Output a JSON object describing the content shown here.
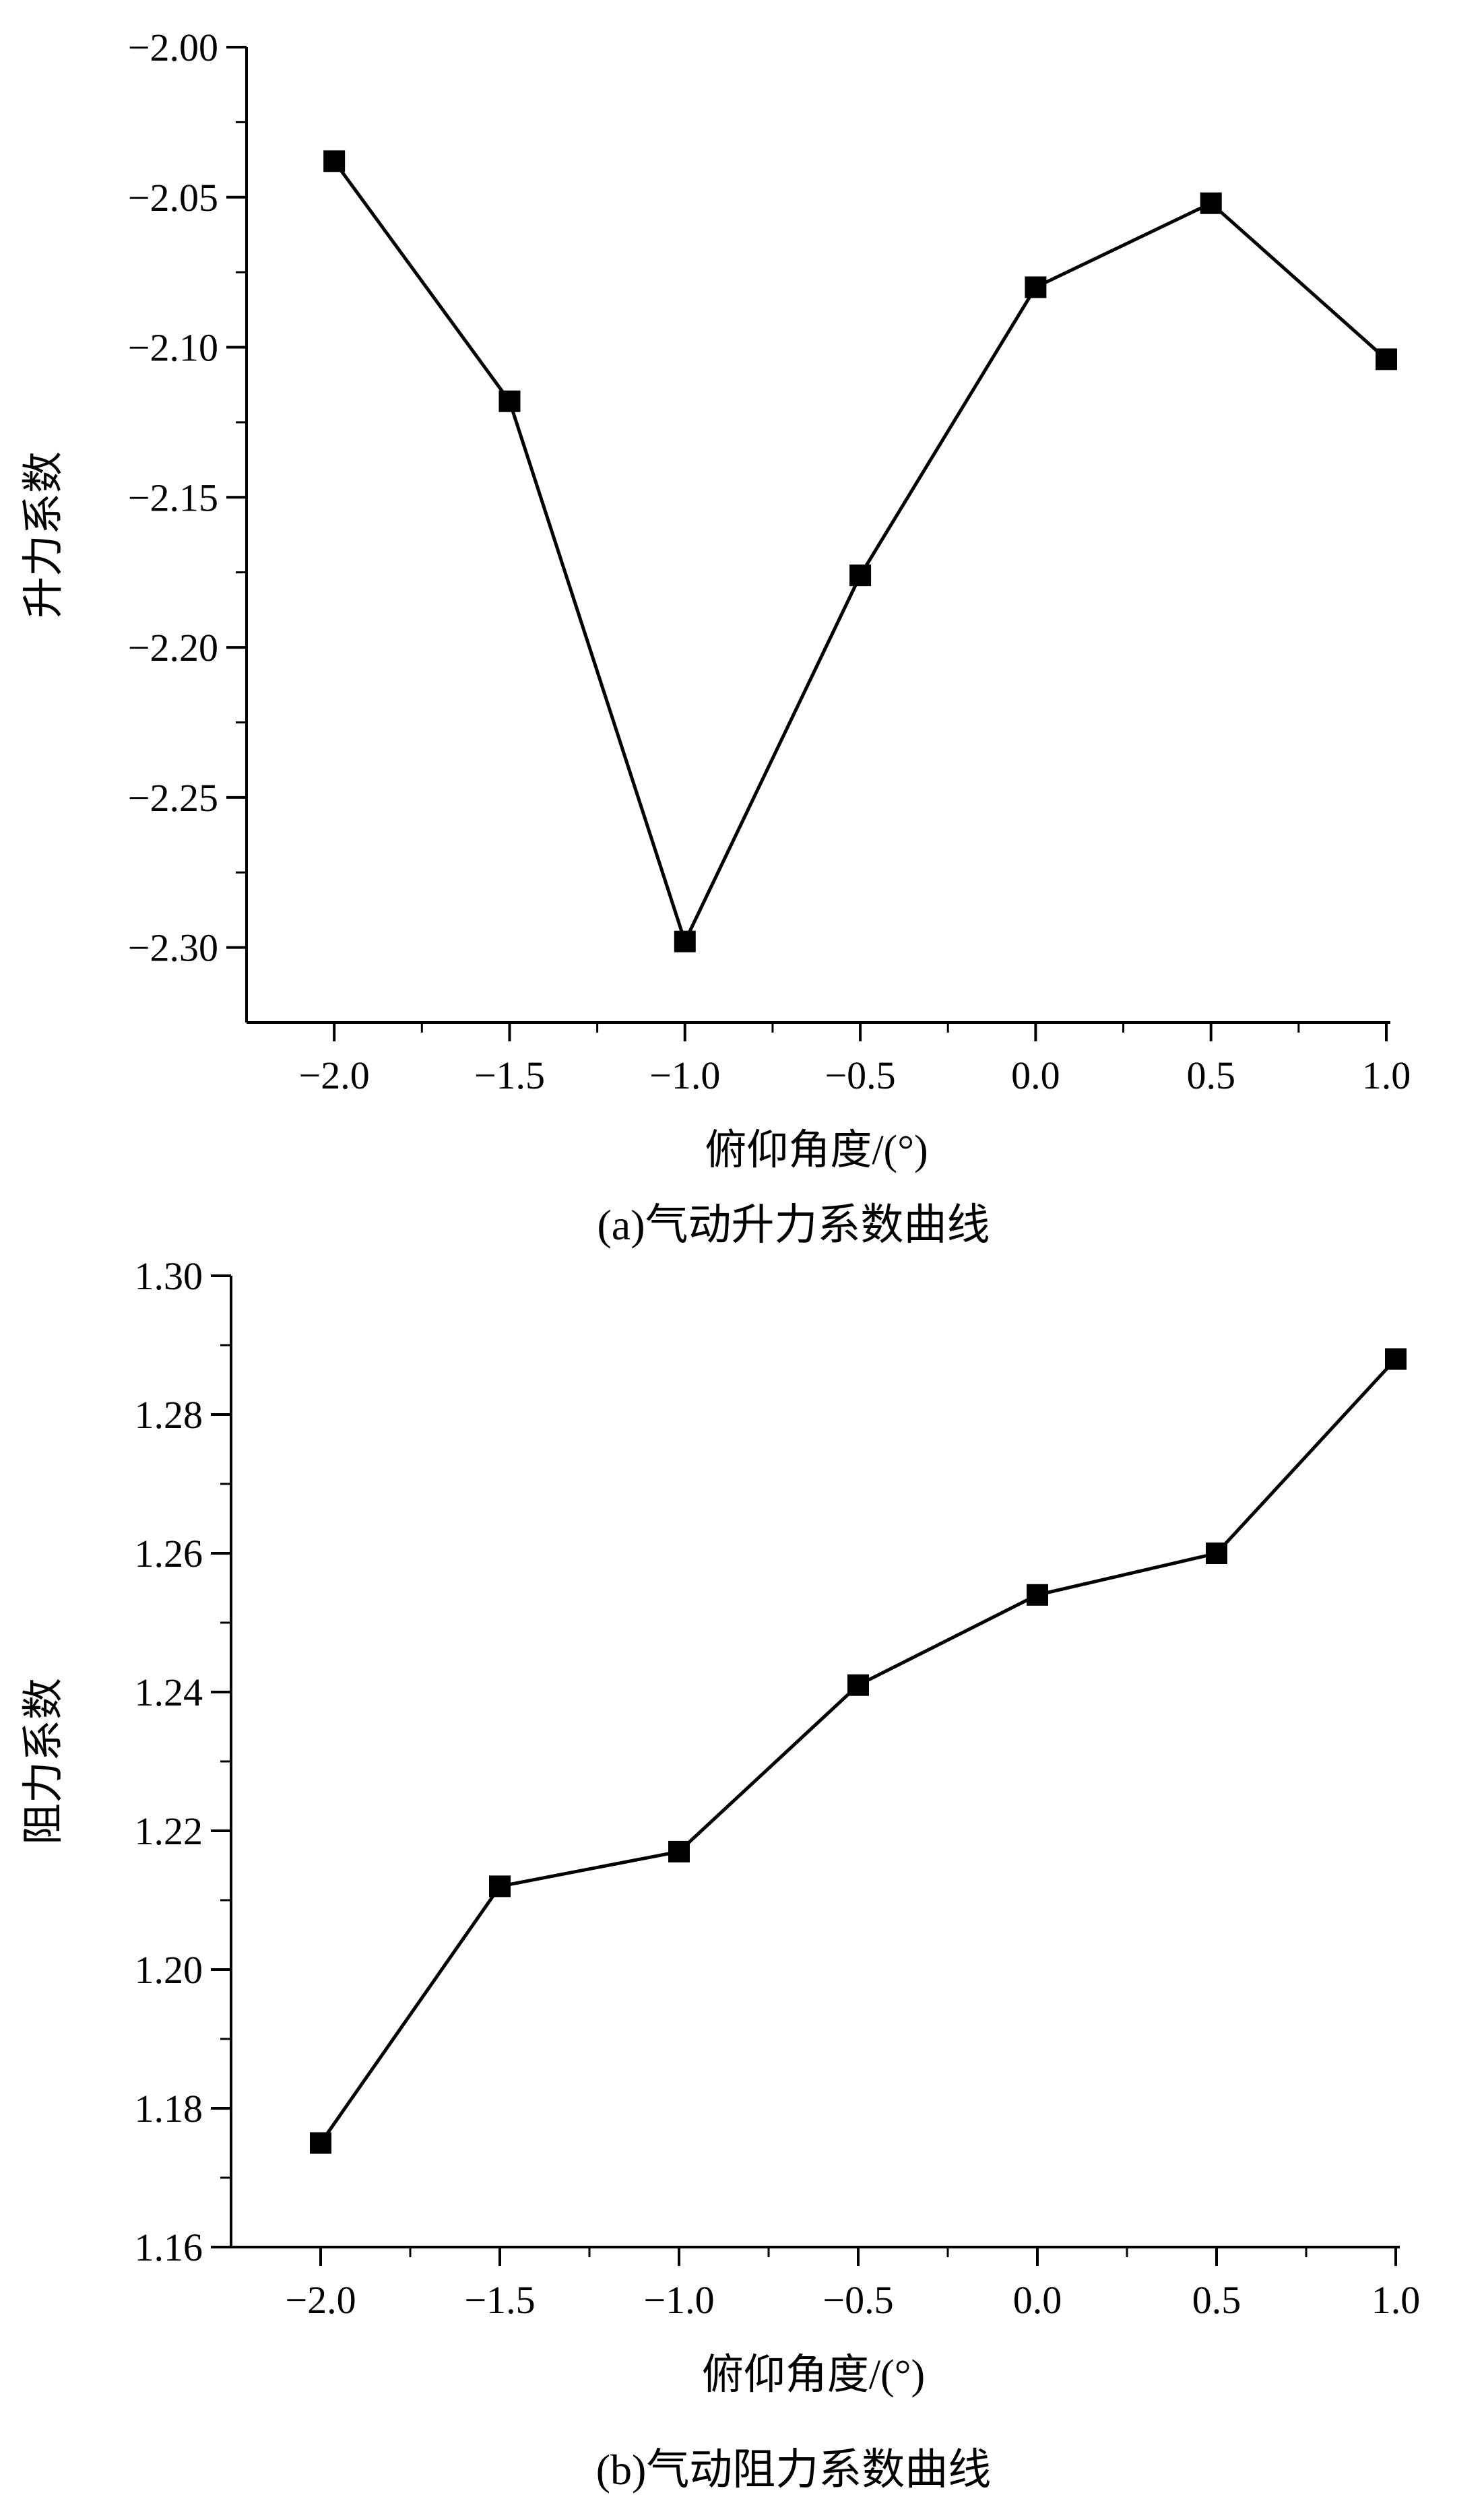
{
  "chart_data": [
    {
      "type": "line",
      "caption": "(a)气动升力系数曲线",
      "xlabel": "俯仰角度/(°)",
      "ylabel": "升力系数",
      "x": [
        -2.0,
        -1.5,
        -1.0,
        -0.5,
        0.0,
        0.5,
        1.0
      ],
      "series": [
        {
          "values": [
            -2.038,
            -2.118,
            -2.298,
            -2.176,
            -2.08,
            -2.052,
            -2.104
          ]
        }
      ],
      "xlim": [
        -2.25,
        1.0
      ],
      "ylim": [
        -2.325,
        -2.0
      ],
      "xticks": [
        -2.0,
        -1.5,
        -1.0,
        -0.5,
        0.0,
        0.5,
        1.0
      ],
      "xtick_labels": [
        "−2.0",
        "−1.5",
        "−1.0",
        "−0.5",
        "0.0",
        "0.5",
        "1.0"
      ],
      "yticks": [
        -2.0,
        -2.05,
        -2.1,
        -2.15,
        -2.2,
        -2.25,
        -2.3
      ],
      "ytick_labels": [
        "−2.00",
        "−2.05",
        "−2.10",
        "−2.15",
        "−2.20",
        "−2.25",
        "−2.30"
      ],
      "marker": "square",
      "grid": false,
      "color": "#000000"
    },
    {
      "type": "line",
      "caption": "(b)气动阻力系数曲线",
      "xlabel": "俯仰角度/(°)",
      "ylabel": "阻力系数",
      "x": [
        -2.0,
        -1.5,
        -1.0,
        -0.5,
        0.0,
        0.5,
        1.0
      ],
      "series": [
        {
          "values": [
            1.175,
            1.212,
            1.217,
            1.241,
            1.254,
            1.26,
            1.288
          ]
        }
      ],
      "xlim": [
        -2.25,
        1.0
      ],
      "ylim": [
        1.16,
        1.3
      ],
      "xticks": [
        -2.0,
        -1.5,
        -1.0,
        -0.5,
        0.0,
        0.5,
        1.0
      ],
      "xtick_labels": [
        "−2.0",
        "−1.5",
        "−1.0",
        "−0.5",
        "0.0",
        "0.5",
        "1.0"
      ],
      "yticks": [
        1.3,
        1.28,
        1.26,
        1.24,
        1.22,
        1.2,
        1.18,
        1.16
      ],
      "ytick_labels": [
        "1.30",
        "1.28",
        "1.26",
        "1.24",
        "1.22",
        "1.20",
        "1.18",
        "1.16"
      ],
      "marker": "square",
      "grid": false,
      "color": "#000000"
    }
  ]
}
